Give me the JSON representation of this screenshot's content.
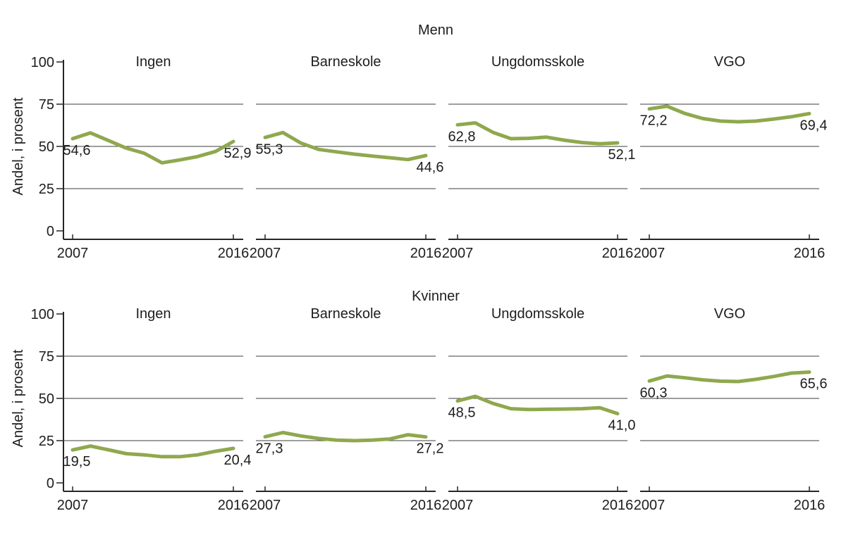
{
  "chart_data": {
    "type": "line",
    "description": "Small-multiples line chart: two rows (Menn, Kvinner) by four education levels, share in percent 2007-2016",
    "x": [
      2007,
      2008,
      2009,
      2010,
      2011,
      2012,
      2013,
      2014,
      2015,
      2016
    ],
    "x_axis_tick_labels": [
      "2007",
      "2016"
    ],
    "ylabel": "Andel, i prosent",
    "ylim": [
      0,
      100
    ],
    "y_ticks": [
      0,
      25,
      50,
      75,
      100
    ],
    "y_tick_labels": [
      "0",
      "25",
      "50",
      "75",
      "100"
    ],
    "gridline_values": [
      25,
      50,
      75
    ],
    "grid": "horizontal-only",
    "legend": "none",
    "line_color": "#8fa84e",
    "grid_color": "#3d3d3d",
    "axis_color": "#262626",
    "text_color": "#1d1d1d",
    "rows": [
      {
        "title": "Menn",
        "panels": [
          {
            "title": "Ingen",
            "values": [
              54.6,
              58.0,
              53.5,
              49.0,
              46.0,
              40.3,
              42.0,
              44.0,
              47.0,
              52.9
            ],
            "first_point_label": "54,6",
            "last_point_label": "52,9"
          },
          {
            "title": "Barneskole",
            "values": [
              55.3,
              58.2,
              52.0,
              48.2,
              46.8,
              45.4,
              44.3,
              43.3,
              42.2,
              44.6
            ],
            "first_point_label": "55,3",
            "last_point_label": "44,6"
          },
          {
            "title": "Ungdomsskole",
            "values": [
              62.8,
              63.9,
              58.3,
              54.6,
              54.8,
              55.5,
              53.7,
              52.3,
              51.6,
              52.1
            ],
            "first_point_label": "62,8",
            "last_point_label": "52,1"
          },
          {
            "title": "VGO",
            "values": [
              72.2,
              73.8,
              69.5,
              66.5,
              65.0,
              64.6,
              65.0,
              66.2,
              67.6,
              69.4
            ],
            "first_point_label": "72,2",
            "last_point_label": "69,4"
          }
        ]
      },
      {
        "title": "Kvinner",
        "panels": [
          {
            "title": "Ingen",
            "values": [
              19.5,
              21.8,
              19.6,
              17.3,
              16.6,
              15.5,
              15.5,
              16.6,
              18.7,
              20.4
            ],
            "first_point_label": "19,5",
            "last_point_label": "20,4"
          },
          {
            "title": "Barneskole",
            "values": [
              27.3,
              29.8,
              27.8,
              26.3,
              25.3,
              25.0,
              25.3,
              26.0,
              28.5,
              27.2
            ],
            "first_point_label": "27,3",
            "last_point_label": "27,2"
          },
          {
            "title": "Ungdomsskole",
            "values": [
              48.5,
              51.2,
              47.0,
              43.9,
              43.4,
              43.6,
              43.7,
              43.9,
              44.5,
              41.0
            ],
            "first_point_label": "48,5",
            "last_point_label": "41,0"
          },
          {
            "title": "VGO",
            "values": [
              60.3,
              63.3,
              62.2,
              61.0,
              60.2,
              60.0,
              61.3,
              63.0,
              65.0,
              65.6
            ],
            "first_point_label": "60,3",
            "last_point_label": "65,6"
          }
        ]
      }
    ]
  }
}
